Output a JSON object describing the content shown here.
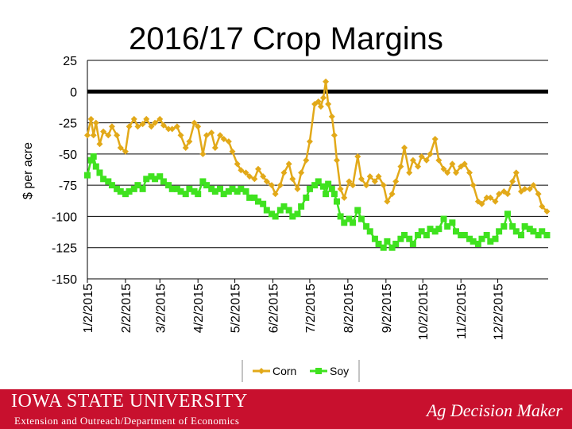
{
  "chart_data": {
    "type": "line",
    "title": "2016/17 Crop Margins",
    "ylabel": "$ per acre",
    "xlabel": "",
    "ylim": [
      -150,
      25
    ],
    "yticks": [
      25,
      0,
      -25,
      -50,
      -75,
      -100,
      -125,
      -150
    ],
    "x_tick_labels": [
      "1/2/2015",
      "2/2/2015",
      "3/2/2015",
      "4/2/2015",
      "5/2/2015",
      "6/2/2015",
      "7/2/2015",
      "8/2/2015",
      "9/2/2015",
      "10/2/2015",
      "11/2/2015",
      "12/2/2015"
    ],
    "grid": true,
    "legend": "bottom",
    "zero_line": true,
    "series": [
      {
        "name": "Corn",
        "color": "#e2a919",
        "marker": "diamond",
        "points": [
          [
            "2015-01-02",
            -35
          ],
          [
            "2015-01-05",
            -22
          ],
          [
            "2015-01-07",
            -35
          ],
          [
            "2015-01-09",
            -25
          ],
          [
            "2015-01-12",
            -42
          ],
          [
            "2015-01-15",
            -32
          ],
          [
            "2015-01-19",
            -35
          ],
          [
            "2015-01-22",
            -28
          ],
          [
            "2015-01-26",
            -35
          ],
          [
            "2015-01-29",
            -45
          ],
          [
            "2015-02-02",
            -48
          ],
          [
            "2015-02-05",
            -28
          ],
          [
            "2015-02-09",
            -22
          ],
          [
            "2015-02-12",
            -28
          ],
          [
            "2015-02-16",
            -26
          ],
          [
            "2015-02-19",
            -22
          ],
          [
            "2015-02-23",
            -28
          ],
          [
            "2015-02-26",
            -25
          ],
          [
            "2015-03-02",
            -22
          ],
          [
            "2015-03-05",
            -27
          ],
          [
            "2015-03-09",
            -30
          ],
          [
            "2015-03-12",
            -30
          ],
          [
            "2015-03-16",
            -28
          ],
          [
            "2015-03-19",
            -35
          ],
          [
            "2015-03-23",
            -45
          ],
          [
            "2015-03-26",
            -40
          ],
          [
            "2015-03-30",
            -25
          ],
          [
            "2015-04-02",
            -28
          ],
          [
            "2015-04-06",
            -50
          ],
          [
            "2015-04-09",
            -35
          ],
          [
            "2015-04-13",
            -33
          ],
          [
            "2015-04-16",
            -45
          ],
          [
            "2015-04-20",
            -35
          ],
          [
            "2015-04-23",
            -38
          ],
          [
            "2015-04-27",
            -40
          ],
          [
            "2015-04-30",
            -48
          ],
          [
            "2015-05-04",
            -58
          ],
          [
            "2015-05-07",
            -63
          ],
          [
            "2015-05-11",
            -65
          ],
          [
            "2015-05-14",
            -68
          ],
          [
            "2015-05-18",
            -70
          ],
          [
            "2015-05-21",
            -62
          ],
          [
            "2015-05-25",
            -68
          ],
          [
            "2015-05-28",
            -72
          ],
          [
            "2015-06-01",
            -75
          ],
          [
            "2015-06-04",
            -82
          ],
          [
            "2015-06-08",
            -75
          ],
          [
            "2015-06-11",
            -65
          ],
          [
            "2015-06-15",
            -58
          ],
          [
            "2015-06-18",
            -70
          ],
          [
            "2015-06-22",
            -78
          ],
          [
            "2015-06-25",
            -65
          ],
          [
            "2015-06-29",
            -55
          ],
          [
            "2015-07-02",
            -40
          ],
          [
            "2015-07-06",
            -10
          ],
          [
            "2015-07-09",
            -8
          ],
          [
            "2015-07-11",
            -12
          ],
          [
            "2015-07-13",
            -5
          ],
          [
            "2015-07-15",
            8
          ],
          [
            "2015-07-17",
            -10
          ],
          [
            "2015-07-20",
            -20
          ],
          [
            "2015-07-22",
            -35
          ],
          [
            "2015-07-24",
            -55
          ],
          [
            "2015-07-27",
            -78
          ],
          [
            "2015-07-30",
            -85
          ],
          [
            "2015-08-03",
            -72
          ],
          [
            "2015-08-06",
            -75
          ],
          [
            "2015-08-10",
            -52
          ],
          [
            "2015-08-13",
            -70
          ],
          [
            "2015-08-17",
            -75
          ],
          [
            "2015-08-20",
            -68
          ],
          [
            "2015-08-24",
            -72
          ],
          [
            "2015-08-27",
            -68
          ],
          [
            "2015-08-31",
            -75
          ],
          [
            "2015-09-03",
            -88
          ],
          [
            "2015-09-07",
            -82
          ],
          [
            "2015-09-10",
            -72
          ],
          [
            "2015-09-14",
            -60
          ],
          [
            "2015-09-17",
            -45
          ],
          [
            "2015-09-21",
            -65
          ],
          [
            "2015-09-24",
            -55
          ],
          [
            "2015-09-28",
            -60
          ],
          [
            "2015-10-01",
            -52
          ],
          [
            "2015-10-05",
            -55
          ],
          [
            "2015-10-08",
            -50
          ],
          [
            "2015-10-12",
            -38
          ],
          [
            "2015-10-15",
            -55
          ],
          [
            "2015-10-19",
            -62
          ],
          [
            "2015-10-22",
            -65
          ],
          [
            "2015-10-26",
            -58
          ],
          [
            "2015-10-29",
            -65
          ],
          [
            "2015-11-02",
            -60
          ],
          [
            "2015-11-05",
            -58
          ],
          [
            "2015-11-09",
            -65
          ],
          [
            "2015-11-12",
            -75
          ],
          [
            "2015-11-16",
            -88
          ],
          [
            "2015-11-19",
            -90
          ],
          [
            "2015-11-23",
            -85
          ],
          [
            "2015-11-26",
            -85
          ],
          [
            "2015-11-30",
            -88
          ],
          [
            "2015-12-03",
            -82
          ],
          [
            "2015-12-07",
            -80
          ],
          [
            "2015-12-10",
            -82
          ],
          [
            "2015-12-14",
            -72
          ],
          [
            "2015-12-17",
            -65
          ],
          [
            "2015-12-21",
            -80
          ],
          [
            "2015-12-24",
            -78
          ],
          [
            "2015-12-28",
            -78
          ],
          [
            "2015-12-31",
            -75
          ],
          [
            "2016-01-04",
            -82
          ],
          [
            "2016-01-07",
            -92
          ],
          [
            "2016-01-11",
            -96
          ]
        ]
      },
      {
        "name": "Soy",
        "color": "#3fe21f",
        "marker": "square",
        "points": [
          [
            "2015-01-02",
            -67
          ],
          [
            "2015-01-05",
            -55
          ],
          [
            "2015-01-07",
            -52
          ],
          [
            "2015-01-09",
            -60
          ],
          [
            "2015-01-12",
            -65
          ],
          [
            "2015-01-15",
            -70
          ],
          [
            "2015-01-19",
            -72
          ],
          [
            "2015-01-22",
            -75
          ],
          [
            "2015-01-26",
            -78
          ],
          [
            "2015-01-29",
            -80
          ],
          [
            "2015-02-02",
            -82
          ],
          [
            "2015-02-05",
            -80
          ],
          [
            "2015-02-09",
            -78
          ],
          [
            "2015-02-12",
            -75
          ],
          [
            "2015-02-16",
            -78
          ],
          [
            "2015-02-19",
            -70
          ],
          [
            "2015-02-23",
            -68
          ],
          [
            "2015-02-26",
            -70
          ],
          [
            "2015-03-02",
            -68
          ],
          [
            "2015-03-05",
            -72
          ],
          [
            "2015-03-09",
            -75
          ],
          [
            "2015-03-12",
            -78
          ],
          [
            "2015-03-16",
            -78
          ],
          [
            "2015-03-19",
            -80
          ],
          [
            "2015-03-23",
            -82
          ],
          [
            "2015-03-26",
            -78
          ],
          [
            "2015-03-30",
            -80
          ],
          [
            "2015-04-02",
            -82
          ],
          [
            "2015-04-06",
            -72
          ],
          [
            "2015-04-09",
            -75
          ],
          [
            "2015-04-13",
            -78
          ],
          [
            "2015-04-16",
            -80
          ],
          [
            "2015-04-20",
            -78
          ],
          [
            "2015-04-23",
            -82
          ],
          [
            "2015-04-27",
            -80
          ],
          [
            "2015-04-30",
            -78
          ],
          [
            "2015-05-04",
            -80
          ],
          [
            "2015-05-07",
            -78
          ],
          [
            "2015-05-11",
            -80
          ],
          [
            "2015-05-14",
            -85
          ],
          [
            "2015-05-18",
            -85
          ],
          [
            "2015-05-21",
            -88
          ],
          [
            "2015-05-25",
            -90
          ],
          [
            "2015-05-28",
            -95
          ],
          [
            "2015-06-01",
            -98
          ],
          [
            "2015-06-04",
            -100
          ],
          [
            "2015-06-08",
            -95
          ],
          [
            "2015-06-11",
            -92
          ],
          [
            "2015-06-15",
            -95
          ],
          [
            "2015-06-18",
            -100
          ],
          [
            "2015-06-22",
            -98
          ],
          [
            "2015-06-25",
            -92
          ],
          [
            "2015-06-29",
            -85
          ],
          [
            "2015-07-02",
            -78
          ],
          [
            "2015-07-06",
            -75
          ],
          [
            "2015-07-09",
            -72
          ],
          [
            "2015-07-13",
            -76
          ],
          [
            "2015-07-15",
            -82
          ],
          [
            "2015-07-17",
            -74
          ],
          [
            "2015-07-20",
            -78
          ],
          [
            "2015-07-22",
            -82
          ],
          [
            "2015-07-24",
            -88
          ],
          [
            "2015-07-27",
            -100
          ],
          [
            "2015-07-30",
            -105
          ],
          [
            "2015-08-03",
            -102
          ],
          [
            "2015-08-06",
            -105
          ],
          [
            "2015-08-10",
            -95
          ],
          [
            "2015-08-13",
            -102
          ],
          [
            "2015-08-17",
            -108
          ],
          [
            "2015-08-20",
            -112
          ],
          [
            "2015-08-24",
            -118
          ],
          [
            "2015-08-27",
            -122
          ],
          [
            "2015-08-31",
            -125
          ],
          [
            "2015-09-03",
            -120
          ],
          [
            "2015-09-07",
            -125
          ],
          [
            "2015-09-10",
            -122
          ],
          [
            "2015-09-14",
            -118
          ],
          [
            "2015-09-17",
            -115
          ],
          [
            "2015-09-21",
            -118
          ],
          [
            "2015-09-24",
            -122
          ],
          [
            "2015-09-28",
            -115
          ],
          [
            "2015-10-01",
            -112
          ],
          [
            "2015-10-05",
            -115
          ],
          [
            "2015-10-08",
            -110
          ],
          [
            "2015-10-12",
            -112
          ],
          [
            "2015-10-15",
            -110
          ],
          [
            "2015-10-19",
            -102
          ],
          [
            "2015-10-22",
            -108
          ],
          [
            "2015-10-26",
            -105
          ],
          [
            "2015-10-29",
            -112
          ],
          [
            "2015-11-02",
            -115
          ],
          [
            "2015-11-05",
            -115
          ],
          [
            "2015-11-09",
            -118
          ],
          [
            "2015-11-12",
            -120
          ],
          [
            "2015-11-16",
            -122
          ],
          [
            "2015-11-19",
            -118
          ],
          [
            "2015-11-23",
            -115
          ],
          [
            "2015-11-26",
            -120
          ],
          [
            "2015-11-30",
            -118
          ],
          [
            "2015-12-03",
            -112
          ],
          [
            "2015-12-07",
            -108
          ],
          [
            "2015-12-10",
            -98
          ],
          [
            "2015-12-14",
            -108
          ],
          [
            "2015-12-17",
            -112
          ],
          [
            "2015-12-21",
            -115
          ],
          [
            "2015-12-24",
            -108
          ],
          [
            "2015-12-28",
            -110
          ],
          [
            "2015-12-31",
            -112
          ],
          [
            "2016-01-04",
            -115
          ],
          [
            "2016-01-07",
            -112
          ],
          [
            "2016-01-11",
            -115
          ]
        ]
      }
    ]
  },
  "footer": {
    "org": "IOWA STATE UNIVERSITY",
    "dept": "Extension and Outreach/Department of Economics",
    "brand": "Ag Decision Maker",
    "bg_color": "#c8102e"
  }
}
